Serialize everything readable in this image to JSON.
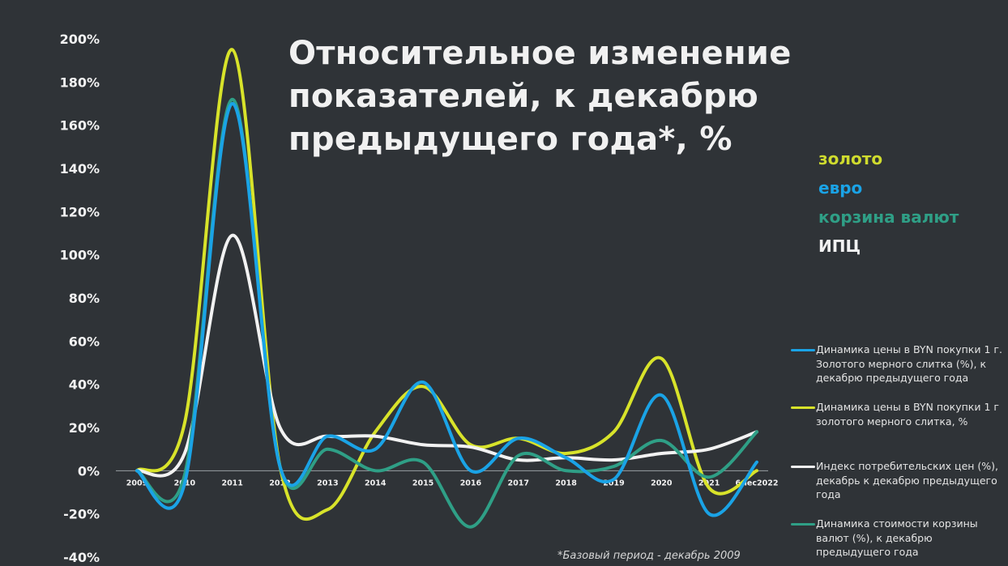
{
  "title": "Относительное изменение показателей, к декабрю предыдущего года*, %",
  "footnote": "*Базовый период - декабрь 2009",
  "side_labels": [
    {
      "text": "золото",
      "color": "#cfdb2e"
    },
    {
      "text": "евро",
      "color": "#1aa3e6"
    },
    {
      "text": "корзина валют",
      "color": "#2f9f86"
    },
    {
      "text": "ИПЦ",
      "color": "#f2f2f2"
    }
  ],
  "legend": [
    {
      "text": "Динамика цены в BYN покупки 1 г. Золотого мерного слитка (%), к декабрю предыдущего года",
      "color": "#1aa3e6"
    },
    {
      "text": "Динамика цены в BYN покупки 1 г золотого мерного слитка, %",
      "color": "#d8e32a"
    },
    {
      "text": "Индекс потребительских цен (%), декабрь к декабрю предыдущего года",
      "color": "#f2f2f2"
    },
    {
      "text": "Динамика стоимости корзины валют (%), к декабрю предыдущего года",
      "color": "#2f9f86"
    }
  ],
  "chart_data": {
    "type": "line",
    "title": "Относительное изменение показателей, к декабрю предыдущего года*, %",
    "categories": [
      "2009",
      "2010",
      "2011",
      "2012",
      "2013",
      "2014",
      "2015",
      "2016",
      "2017",
      "2018",
      "2019",
      "2020",
      "2021",
      "6мес2022"
    ],
    "y_ticks": [
      "-40%",
      "-20%",
      "0%",
      "20%",
      "40%",
      "60%",
      "80%",
      "100%",
      "120%",
      "140%",
      "160%",
      "180%",
      "200%"
    ],
    "ylim": [
      -40,
      200
    ],
    "grid": false,
    "legend_position": "right",
    "series": [
      {
        "name": "Динамика цены в BYN покупки 1 г золотого мерного слитка, %",
        "color": "#d8e32a",
        "values": [
          0,
          22,
          195,
          2,
          -18,
          18,
          39,
          12,
          15,
          8,
          18,
          52,
          -8,
          0
        ]
      },
      {
        "name": "Индекс потребительских цен (%), декабрь к декабрю предыдущего года",
        "color": "#f2f2f2",
        "values": [
          0,
          8,
          109,
          20,
          16,
          16,
          12,
          11,
          5,
          6,
          5,
          8,
          10,
          18
        ]
      },
      {
        "name": "Динамика стоимости корзины валют (%), к декабрю предыдущего года",
        "color": "#2f9f86",
        "values": [
          0,
          -2,
          172,
          2,
          10,
          0,
          4,
          -26,
          7,
          0,
          2,
          14,
          -3,
          18
        ]
      },
      {
        "name": "Динамика цены в BYN покупки 1 г. Золотого мерного слитка (%), к декабрю предыдущего года",
        "color": "#1aa3e6",
        "values": [
          0,
          -6,
          170,
          2,
          16,
          10,
          41,
          0,
          15,
          6,
          -4,
          35,
          -20,
          4
        ]
      }
    ]
  }
}
